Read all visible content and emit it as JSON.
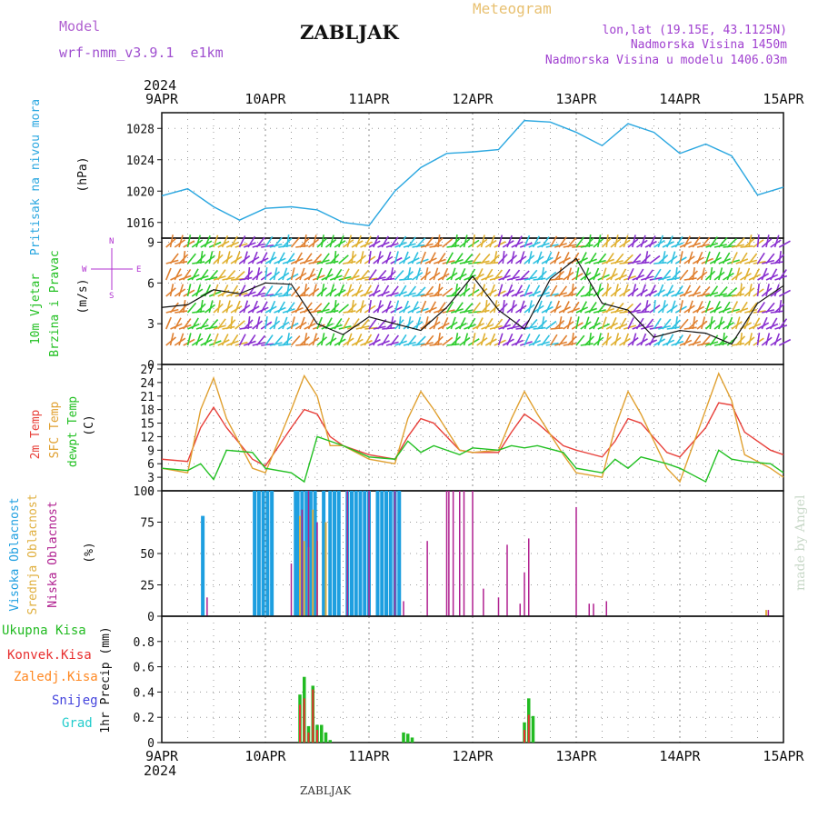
{
  "header": {
    "model_label": "Model",
    "model_name": "wrf-nmm_v3.9.1  e1km",
    "title": "ZABLJAK",
    "meteogram_label": "Meteogram",
    "coords": "lon,lat (19.15E, 43.1125N)",
    "elevation": "Nadmorska Visina 1450m",
    "model_elevation": "Nadmorska Visina u modelu 1406.03m",
    "year": "2024",
    "footer_station": "ZABLJAK",
    "watermark": "made by Angel"
  },
  "colors": {
    "pressure": "#2aa7e0",
    "wind_green": "#2ecc2e",
    "temp_2m": "#e8403a",
    "temp_sfc": "#e0a030",
    "dewpt": "#22c022",
    "cloud_high": "#1e9fe0",
    "cloud_mid": "#e0b040",
    "cloud_low": "#b02090",
    "precip_total": "#22bb22",
    "precip_conv": "#e83030",
    "precip_freezing": "#ff8822",
    "snow": "#4444dd",
    "hail": "#22cccc",
    "compass": "#b030d0"
  },
  "chart_data": [
    {
      "type": "line",
      "name": "pressure",
      "ylabel": [
        "Pritisak na nivou mora",
        "(hPa)"
      ],
      "ylim": [
        1014,
        1030
      ],
      "yticks": [
        1016,
        1020,
        1024,
        1028
      ],
      "x_days": [
        "9APR",
        "10APR",
        "11APR",
        "12APR",
        "13APR",
        "14APR",
        "15APR"
      ],
      "x_hours": [
        0,
        6,
        12,
        18,
        24,
        30,
        36,
        42,
        48,
        54,
        60,
        66,
        72,
        78,
        84,
        90,
        96,
        102,
        108,
        114,
        120,
        126,
        132,
        138,
        144
      ],
      "grid": true,
      "values": [
        1019.4,
        1020.3,
        1018.0,
        1016.3,
        1017.8,
        1018.0,
        1017.6,
        1016.0,
        1015.6,
        1020.0,
        1023.0,
        1024.8,
        1025.0,
        1025.3,
        1029.0,
        1028.8,
        1027.5,
        1025.8,
        1028.6,
        1027.5,
        1024.8,
        1026.0,
        1024.5,
        1019.5,
        1020.5
      ]
    },
    {
      "type": "line",
      "name": "wind",
      "ylabel": [
        "10m Vjetar",
        "Brzina i Pravac",
        "(m/s)"
      ],
      "compass_labels": [
        "N",
        "S",
        "W",
        "E"
      ],
      "ylim": [
        0,
        9.3
      ],
      "yticks": [
        0,
        3,
        6,
        9
      ],
      "grid": true,
      "x_hours": [
        0,
        6,
        12,
        18,
        24,
        30,
        36,
        42,
        48,
        54,
        60,
        66,
        72,
        78,
        84,
        90,
        96,
        102,
        108,
        114,
        120,
        126,
        132,
        138,
        144
      ],
      "values": [
        4.2,
        4.4,
        5.5,
        5.2,
        6.0,
        5.9,
        3.0,
        2.2,
        3.5,
        3.0,
        2.5,
        4.2,
        6.5,
        4.0,
        2.6,
        6.3,
        7.8,
        4.5,
        4.0,
        2.0,
        2.5,
        2.3,
        1.5,
        4.5,
        5.8
      ],
      "barb_speed_bands": [
        "#2ecc2e",
        "#2ec0e0",
        "#e0b030",
        "#e08030",
        "#8a30d0"
      ]
    },
    {
      "type": "line",
      "name": "temperature",
      "ylabel": [
        "2m Temp",
        "SFC Temp",
        "dewpt Temp",
        "(C)"
      ],
      "ylim": [
        0,
        28
      ],
      "yticks": [
        0,
        3,
        6,
        9,
        12,
        15,
        18,
        21,
        24,
        27
      ],
      "grid": true,
      "x_hours": [
        0,
        6,
        9,
        12,
        15,
        21,
        24,
        30,
        33,
        36,
        39,
        42,
        48,
        54,
        57,
        60,
        63,
        69,
        72,
        78,
        81,
        84,
        87,
        93,
        96,
        102,
        105,
        108,
        111,
        117,
        120,
        126,
        129,
        132,
        135,
        141,
        144
      ],
      "series": [
        {
          "name": "2m Temp",
          "values": [
            7,
            6.5,
            14,
            18.5,
            14,
            7,
            5.5,
            14,
            18,
            17,
            12,
            10,
            8,
            7,
            12,
            16,
            15,
            9,
            8.5,
            8.5,
            13,
            17,
            15,
            10,
            9,
            7.5,
            11,
            16,
            15,
            8.5,
            7.5,
            14,
            19.5,
            19,
            13,
            9,
            8
          ]
        },
        {
          "name": "SFC Temp",
          "values": [
            5,
            4,
            18,
            25,
            16,
            5,
            4,
            18,
            25.5,
            21,
            10,
            10,
            7,
            6,
            16,
            22,
            18,
            9,
            8.5,
            9,
            16,
            22,
            17,
            8,
            4,
            3,
            14,
            22,
            17,
            5,
            2,
            18,
            26,
            20,
            8,
            5,
            3
          ]
        },
        {
          "name": "dewpt Temp",
          "values": [
            5,
            4.5,
            6,
            2.5,
            9,
            8.5,
            5,
            4,
            2,
            12,
            11,
            10,
            7.5,
            7,
            11,
            8.5,
            10,
            8,
            9.5,
            9,
            10,
            9.5,
            10,
            8.5,
            5,
            4,
            7,
            5,
            7.5,
            6,
            5,
            2,
            9,
            7,
            6.5,
            6,
            4
          ]
        }
      ]
    },
    {
      "type": "bar",
      "name": "clouds",
      "ylabel": [
        "Visoka Oblacnost",
        "Srednja Oblacnost",
        "Niska Oblacnost",
        "(%)"
      ],
      "ylim": [
        0,
        100
      ],
      "yticks": [
        0,
        25,
        50,
        75,
        100
      ],
      "grid": true,
      "series": [
        {
          "name": "Visoka Oblacnost",
          "x": [
            9.5,
            21.5,
            22.5,
            23.5,
            24.5,
            25.5,
            31,
            31.5,
            32.5,
            33.5,
            34.5,
            35.5,
            37.5,
            39,
            40,
            41,
            43,
            44,
            45,
            46,
            47,
            48,
            50,
            51,
            52,
            53,
            54,
            55
          ],
          "values": [
            80,
            100,
            100,
            100,
            100,
            100,
            100,
            100,
            100,
            100,
            100,
            100,
            100,
            100,
            100,
            100,
            100,
            100,
            100,
            100,
            100,
            100,
            100,
            100,
            100,
            100,
            100,
            100
          ]
        },
        {
          "name": "Srednja Oblacnost",
          "x": [
            32,
            33,
            34,
            35,
            36,
            38,
            140
          ],
          "values": [
            80,
            60,
            55,
            85,
            60,
            75,
            5
          ]
        },
        {
          "name": "Niska Oblacnost",
          "x": [
            10.5,
            30,
            32.5,
            34,
            36,
            43,
            48,
            54,
            56,
            61.5,
            66,
            66.5,
            67.5,
            69,
            70,
            72,
            74.5,
            78,
            80,
            83,
            84,
            85,
            96,
            99,
            100,
            103,
            140.5
          ],
          "values": [
            15,
            42,
            85,
            100,
            75,
            100,
            100,
            100,
            12,
            60,
            100,
            100,
            100,
            100,
            100,
            100,
            22,
            15,
            57,
            10,
            35,
            62,
            87,
            10,
            10,
            12,
            5
          ]
        }
      ]
    },
    {
      "type": "bar",
      "name": "precipitation",
      "ylabel": [
        "1hr Precip (mm)"
      ],
      "legend": [
        "Ukupna Kisa",
        "Konvek.Kisa",
        "Zaledj.Kisa",
        "Snijeg",
        "Grad"
      ],
      "ylim": [
        0,
        1.0
      ],
      "yticks": [
        0,
        0.2,
        0.4,
        0.6,
        0.8
      ],
      "grid": true,
      "series": [
        {
          "name": "Ukupna Kisa",
          "x": [
            32,
            33,
            34,
            35,
            36,
            37,
            38,
            39,
            56,
            57,
            58,
            84,
            85,
            86
          ],
          "values": [
            0.38,
            0.52,
            0.13,
            0.45,
            0.14,
            0.14,
            0.08,
            0.02,
            0.08,
            0.07,
            0.04,
            0.16,
            0.35,
            0.21
          ]
        },
        {
          "name": "Konvek.Kisa",
          "x": [
            32,
            33,
            34,
            35,
            36,
            84,
            85
          ],
          "values": [
            0.3,
            0.35,
            0.08,
            0.42,
            0.1,
            0.1,
            0.22
          ]
        }
      ]
    }
  ]
}
